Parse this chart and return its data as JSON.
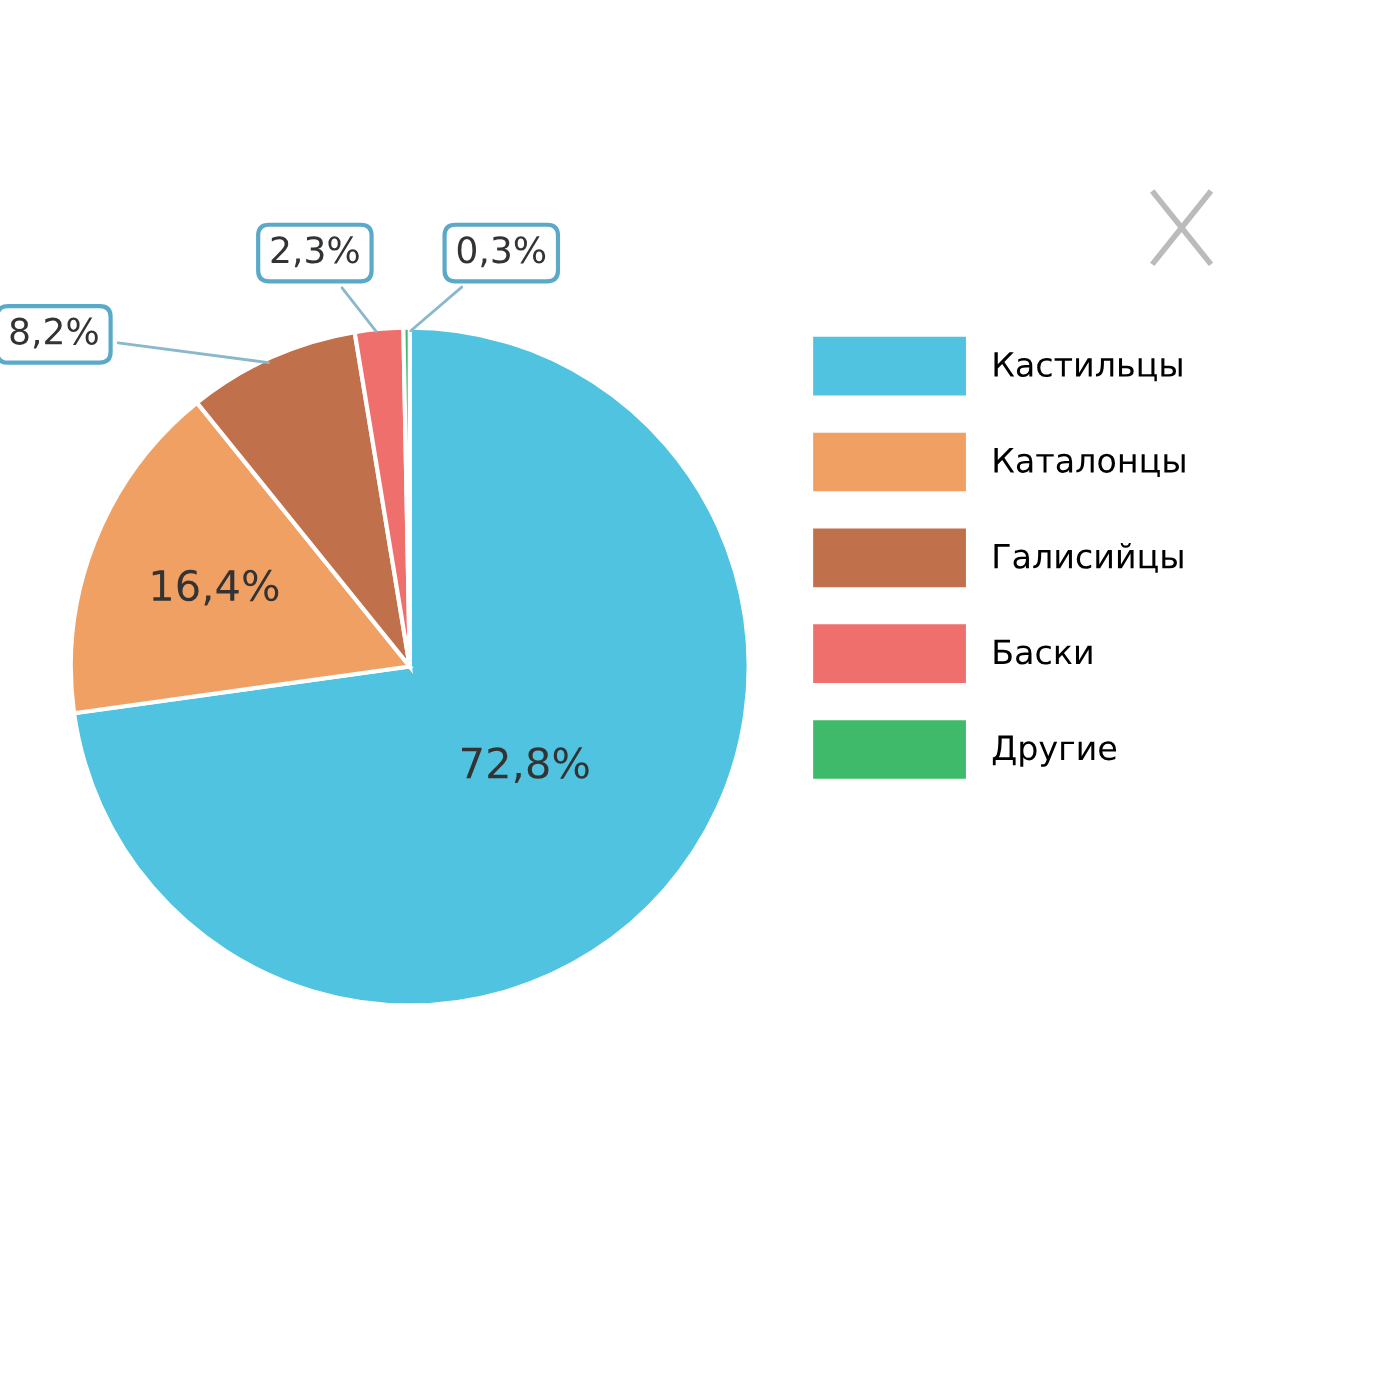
{
  "chart_data": {
    "type": "pie",
    "categories": [
      "Кастильцы",
      "Каталонцы",
      "Галисийцы",
      "Баски",
      "Другие"
    ],
    "values": [
      72.8,
      16.4,
      8.2,
      2.3,
      0.3
    ],
    "colors": [
      "#4fc3e0",
      "#f0a062",
      "#c0704a",
      "#ef6f6c",
      "#3fba6a"
    ],
    "value_labels": [
      "72,8%",
      "16,4%",
      "8,2%",
      "2,3%",
      "0,3%"
    ],
    "legend": "right"
  }
}
